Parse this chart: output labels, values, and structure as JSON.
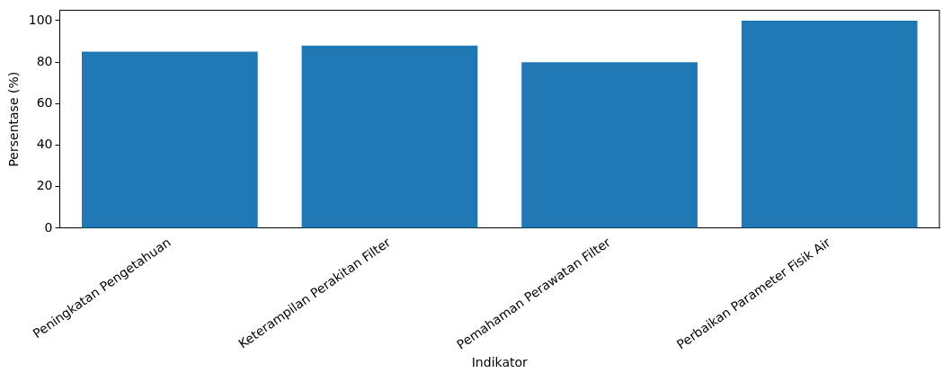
{
  "chart_data": {
    "type": "bar",
    "xlabel": "Indikator",
    "ylabel": "Persentase (%)",
    "categories": [
      "Peningkatan Pengetahuan",
      "Keterampilan Perakitan Filter",
      "Pemahaman Perawatan Filter",
      "Perbaikan Parameter Fisik Air"
    ],
    "values": [
      85,
      88,
      80,
      100
    ],
    "color": "#1f77b4",
    "ylim": [
      0,
      105
    ],
    "yticks": [
      0,
      20,
      40,
      60,
      80,
      100
    ],
    "grid": false
  }
}
